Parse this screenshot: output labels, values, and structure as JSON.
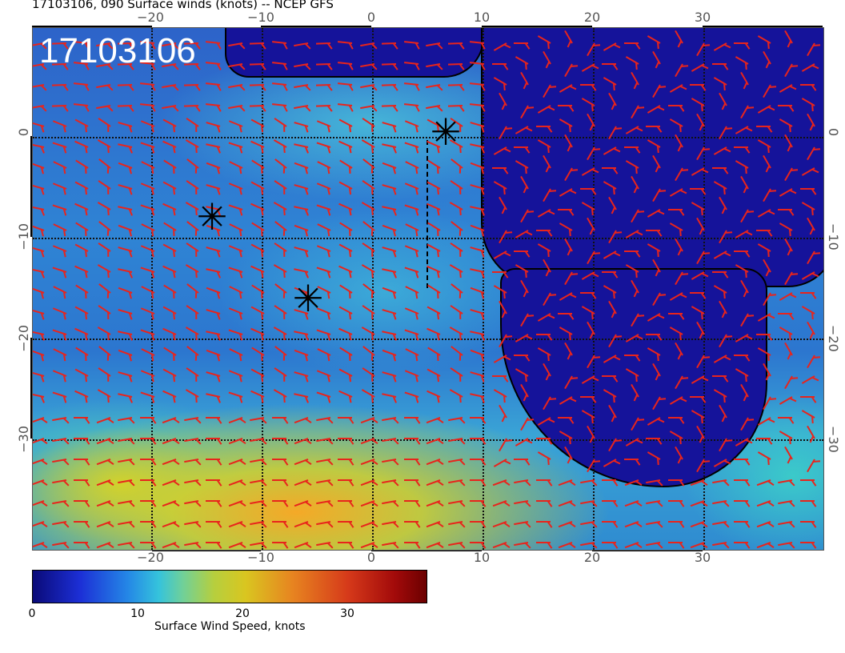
{
  "header": {
    "title": "17103106, 090 Surface winds (knots) -- NCEP GFS"
  },
  "map": {
    "date_overlay": "17103106",
    "x_ticks": [
      "−20",
      "−10",
      "0",
      "10",
      "20",
      "30"
    ],
    "y_ticks": [
      "0",
      "−10",
      "−20",
      "−30"
    ],
    "storm_marker_icon": "asterisk-storm-icon",
    "barb_color": "#e8241c"
  },
  "colorbar": {
    "ticks": [
      "0",
      "10",
      "20",
      "30"
    ],
    "label": "Surface Wind Speed, knots"
  }
}
